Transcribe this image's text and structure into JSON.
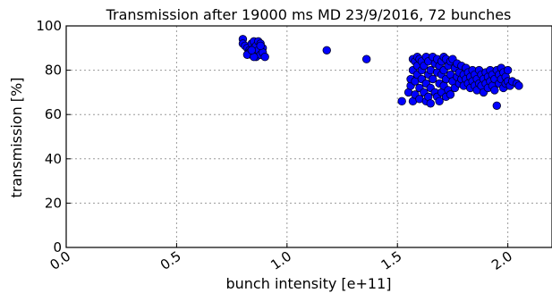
{
  "chart_data": {
    "type": "scatter",
    "title": "Transmission after 19000 ms MD 23/9/2016, 72 bunches",
    "xlabel": "bunch intensity [e+11]",
    "ylabel": "transmission [%]",
    "xlim": [
      0.0,
      2.2
    ],
    "ylim": [
      0,
      100
    ],
    "x_ticks": [
      "0.0",
      "0.5",
      "1.0",
      "1.5",
      "2.0"
    ],
    "x_tick_values": [
      0.0,
      0.5,
      1.0,
      1.5,
      2.0
    ],
    "y_ticks": [
      "0",
      "20",
      "40",
      "60",
      "80",
      "100"
    ],
    "y_tick_values": [
      0,
      20,
      40,
      60,
      80,
      100
    ],
    "grid": true,
    "x_tick_rotation": "rotated",
    "marker_color": "#0000ff",
    "series": [
      {
        "points": [
          [
            0.8,
            94
          ],
          [
            0.8,
            92
          ],
          [
            0.81,
            91
          ],
          [
            0.82,
            90
          ],
          [
            0.83,
            89
          ],
          [
            0.83,
            88
          ],
          [
            0.84,
            92
          ],
          [
            0.84,
            87
          ],
          [
            0.85,
            93
          ],
          [
            0.85,
            90
          ],
          [
            0.86,
            91
          ],
          [
            0.86,
            88
          ],
          [
            0.86,
            86
          ],
          [
            0.87,
            93
          ],
          [
            0.87,
            89
          ],
          [
            0.88,
            92
          ],
          [
            0.88,
            87
          ],
          [
            0.89,
            90
          ],
          [
            0.89,
            88
          ],
          [
            0.9,
            86
          ],
          [
            0.82,
            87
          ],
          [
            0.85,
            86
          ],
          [
            0.88,
            91
          ],
          [
            0.84,
            89
          ],
          [
            1.18,
            89
          ],
          [
            1.36,
            85
          ],
          [
            1.52,
            66
          ],
          [
            1.55,
            70
          ],
          [
            1.56,
            73
          ],
          [
            1.56,
            76
          ],
          [
            1.57,
            85
          ],
          [
            1.57,
            80
          ],
          [
            1.57,
            66
          ],
          [
            1.58,
            84
          ],
          [
            1.58,
            75
          ],
          [
            1.58,
            69
          ],
          [
            1.59,
            86
          ],
          [
            1.59,
            82
          ],
          [
            1.59,
            78
          ],
          [
            1.6,
            85
          ],
          [
            1.6,
            72
          ],
          [
            1.6,
            67
          ],
          [
            1.61,
            84
          ],
          [
            1.61,
            80
          ],
          [
            1.61,
            76
          ],
          [
            1.62,
            82
          ],
          [
            1.62,
            70
          ],
          [
            1.63,
            86
          ],
          [
            1.63,
            74
          ],
          [
            1.63,
            66
          ],
          [
            1.64,
            84
          ],
          [
            1.64,
            78
          ],
          [
            1.64,
            68
          ],
          [
            1.65,
            80
          ],
          [
            1.65,
            72
          ],
          [
            1.65,
            65
          ],
          [
            1.66,
            86
          ],
          [
            1.66,
            76
          ],
          [
            1.67,
            83
          ],
          [
            1.67,
            70
          ],
          [
            1.68,
            85
          ],
          [
            1.68,
            79
          ],
          [
            1.68,
            68
          ],
          [
            1.69,
            82
          ],
          [
            1.69,
            74
          ],
          [
            1.69,
            66
          ],
          [
            1.7,
            84
          ],
          [
            1.7,
            78
          ],
          [
            1.7,
            70
          ],
          [
            1.71,
            86
          ],
          [
            1.71,
            80
          ],
          [
            1.71,
            73
          ],
          [
            1.72,
            85
          ],
          [
            1.72,
            76
          ],
          [
            1.72,
            68
          ],
          [
            1.73,
            82
          ],
          [
            1.73,
            71
          ],
          [
            1.74,
            84
          ],
          [
            1.74,
            78
          ],
          [
            1.74,
            69
          ],
          [
            1.75,
            85
          ],
          [
            1.75,
            75
          ],
          [
            1.76,
            81
          ],
          [
            1.76,
            72
          ],
          [
            1.77,
            83
          ],
          [
            1.77,
            77
          ],
          [
            1.78,
            79
          ],
          [
            1.78,
            74
          ],
          [
            1.79,
            82
          ],
          [
            1.79,
            76
          ],
          [
            1.8,
            78
          ],
          [
            1.8,
            73
          ],
          [
            1.81,
            81
          ],
          [
            1.81,
            76
          ],
          [
            1.82,
            79
          ],
          [
            1.82,
            74
          ],
          [
            1.83,
            77
          ],
          [
            1.83,
            72
          ],
          [
            1.84,
            80
          ],
          [
            1.84,
            75
          ],
          [
            1.85,
            78
          ],
          [
            1.85,
            73
          ],
          [
            1.86,
            76
          ],
          [
            1.86,
            71
          ],
          [
            1.87,
            80
          ],
          [
            1.87,
            74
          ],
          [
            1.88,
            78
          ],
          [
            1.88,
            73
          ],
          [
            1.89,
            76
          ],
          [
            1.89,
            70
          ],
          [
            1.9,
            79
          ],
          [
            1.9,
            74
          ],
          [
            1.91,
            77
          ],
          [
            1.91,
            72
          ],
          [
            1.92,
            80
          ],
          [
            1.92,
            75
          ],
          [
            1.93,
            78
          ],
          [
            1.93,
            73
          ],
          [
            1.94,
            76
          ],
          [
            1.94,
            71
          ],
          [
            1.95,
            80
          ],
          [
            1.95,
            64
          ],
          [
            1.96,
            78
          ],
          [
            1.96,
            74
          ],
          [
            1.97,
            81
          ],
          [
            1.97,
            76
          ],
          [
            1.98,
            79
          ],
          [
            1.98,
            72
          ],
          [
            1.99,
            77
          ],
          [
            1.99,
            74
          ],
          [
            2.0,
            80
          ],
          [
            2.0,
            75
          ],
          [
            2.01,
            73
          ],
          [
            2.02,
            75
          ],
          [
            2.04,
            74
          ],
          [
            2.05,
            73
          ]
        ]
      }
    ]
  }
}
